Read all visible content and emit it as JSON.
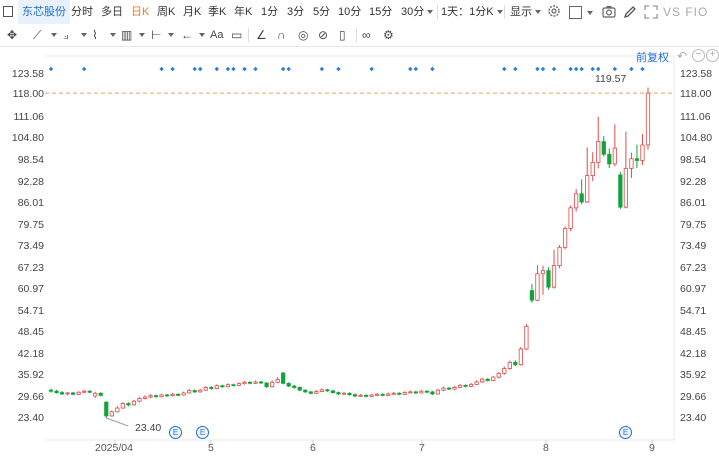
{
  "toolbar": {
    "stock_name": "东芯股份",
    "periods": [
      "分时",
      "多日",
      "日K",
      "周K",
      "月K",
      "季K",
      "年K",
      "1分",
      "3分",
      "5分",
      "10分",
      "15分"
    ],
    "active_period": "日K",
    "period_30": "30分",
    "ratio": "1天：1分K",
    "display": "显示",
    "right_text": "VS FIO"
  },
  "adjust_label": "前复权",
  "chart_data": {
    "type": "candlestick",
    "y_axis_labels": [
      "123.58",
      "118.00",
      "111.06",
      "104.80",
      "98.54",
      "92.28",
      "86.01",
      "79.75",
      "73.49",
      "67.23",
      "60.97",
      "54.71",
      "48.45",
      "42.18",
      "35.92",
      "29.66",
      "23.40"
    ],
    "ylim": [
      23.4,
      123.58
    ],
    "x_tick_labels": [
      "2025/04",
      "5",
      "6",
      "7",
      "8",
      "9"
    ],
    "reference_line": "118.00",
    "annotations": {
      "max": "119.57",
      "min": "23.40"
    },
    "candles": [
      [
        31.5,
        31.2,
        32.0,
        30.8
      ],
      [
        31.2,
        30.8,
        31.6,
        30.5
      ],
      [
        30.8,
        30.4,
        31.2,
        30.1
      ],
      [
        30.4,
        30.7,
        31.0,
        30.0
      ],
      [
        30.7,
        30.3,
        31.0,
        30.0
      ],
      [
        30.3,
        30.9,
        31.2,
        30.1
      ],
      [
        30.9,
        31.2,
        31.6,
        30.6
      ],
      [
        31.2,
        30.9,
        31.5,
        30.6
      ],
      [
        29.8,
        30.6,
        31.0,
        29.3
      ],
      [
        30.6,
        30.0,
        30.9,
        29.7
      ],
      [
        28.0,
        24.0,
        28.3,
        23.4
      ],
      [
        24.0,
        25.2,
        25.6,
        23.8
      ],
      [
        25.2,
        26.3,
        26.8,
        25.0
      ],
      [
        26.3,
        27.6,
        28.0,
        26.1
      ],
      [
        27.6,
        27.2,
        28.0,
        26.8
      ],
      [
        27.2,
        28.3,
        28.7,
        27.0
      ],
      [
        28.3,
        29.1,
        29.5,
        28.0
      ],
      [
        29.1,
        29.5,
        30.0,
        28.8
      ],
      [
        29.5,
        29.9,
        30.3,
        29.2
      ],
      [
        29.9,
        29.6,
        30.2,
        29.3
      ],
      [
        29.6,
        30.1,
        30.5,
        29.4
      ],
      [
        30.1,
        29.9,
        30.4,
        29.6
      ],
      [
        29.9,
        30.3,
        30.7,
        29.7
      ],
      [
        30.3,
        30.1,
        30.6,
        29.8
      ],
      [
        30.1,
        30.7,
        31.1,
        29.9
      ],
      [
        30.7,
        31.4,
        31.8,
        30.5
      ],
      [
        31.4,
        31.0,
        31.7,
        30.7
      ],
      [
        31.0,
        31.5,
        31.9,
        30.8
      ],
      [
        31.5,
        32.3,
        32.7,
        31.3
      ],
      [
        32.3,
        32.0,
        32.7,
        31.6
      ],
      [
        32.0,
        32.8,
        33.2,
        31.8
      ],
      [
        32.8,
        32.5,
        33.1,
        32.2
      ],
      [
        32.5,
        33.1,
        33.5,
        32.3
      ],
      [
        33.1,
        32.9,
        33.4,
        32.6
      ],
      [
        32.9,
        33.4,
        33.8,
        32.7
      ],
      [
        33.4,
        33.8,
        34.2,
        33.1
      ],
      [
        33.8,
        33.5,
        34.1,
        33.2
      ],
      [
        33.5,
        33.9,
        34.3,
        33.3
      ],
      [
        33.9,
        33.6,
        34.2,
        33.3
      ],
      [
        33.6,
        32.5,
        33.8,
        32.2
      ],
      [
        32.5,
        33.8,
        34.3,
        32.3
      ],
      [
        33.8,
        34.6,
        35.3,
        33.5
      ],
      [
        36.5,
        33.5,
        36.8,
        33.2
      ],
      [
        33.5,
        32.7,
        33.8,
        32.4
      ],
      [
        32.7,
        32.3,
        33.0,
        31.9
      ],
      [
        32.3,
        31.5,
        32.6,
        31.2
      ],
      [
        31.5,
        31.0,
        31.8,
        30.7
      ],
      [
        31.0,
        30.6,
        31.3,
        30.3
      ],
      [
        30.6,
        31.1,
        31.5,
        30.4
      ],
      [
        31.1,
        31.6,
        32.0,
        30.9
      ],
      [
        31.6,
        31.3,
        31.9,
        31.0
      ],
      [
        31.3,
        30.8,
        31.6,
        30.5
      ],
      [
        30.8,
        30.4,
        31.1,
        30.1
      ],
      [
        30.4,
        30.6,
        31.0,
        30.2
      ],
      [
        30.6,
        30.2,
        30.9,
        29.9
      ],
      [
        30.2,
        29.8,
        30.5,
        29.5
      ],
      [
        29.8,
        30.0,
        30.4,
        29.6
      ],
      [
        30.0,
        29.7,
        30.3,
        29.4
      ],
      [
        29.7,
        30.1,
        30.4,
        29.5
      ],
      [
        30.1,
        30.3,
        30.7,
        29.9
      ],
      [
        30.3,
        30.0,
        30.6,
        29.7
      ],
      [
        30.0,
        30.4,
        30.8,
        29.8
      ],
      [
        30.4,
        30.6,
        31.0,
        30.2
      ],
      [
        30.6,
        30.3,
        30.9,
        30.0
      ],
      [
        30.3,
        30.8,
        31.2,
        30.1
      ],
      [
        30.8,
        31.0,
        31.4,
        30.6
      ],
      [
        31.0,
        30.7,
        31.3,
        30.4
      ],
      [
        30.7,
        31.2,
        31.6,
        30.5
      ],
      [
        31.2,
        31.0,
        31.5,
        30.7
      ],
      [
        31.0,
        30.4,
        31.3,
        30.1
      ],
      [
        30.4,
        31.5,
        31.9,
        30.2
      ],
      [
        31.5,
        32.1,
        32.5,
        31.2
      ],
      [
        32.1,
        31.8,
        32.4,
        31.5
      ],
      [
        31.8,
        32.3,
        32.7,
        31.6
      ],
      [
        32.3,
        32.9,
        33.3,
        32.1
      ],
      [
        32.9,
        32.6,
        33.2,
        32.3
      ],
      [
        32.6,
        33.2,
        33.6,
        32.4
      ],
      [
        33.2,
        33.9,
        34.4,
        33.0
      ],
      [
        33.9,
        34.7,
        35.1,
        33.6
      ],
      [
        34.7,
        34.3,
        35.0,
        34.0
      ],
      [
        34.3,
        35.3,
        35.7,
        34.1
      ],
      [
        35.3,
        36.4,
        36.8,
        35.0
      ],
      [
        36.4,
        37.8,
        38.4,
        36.0
      ],
      [
        37.8,
        39.6,
        40.1,
        37.4
      ],
      [
        39.6,
        38.9,
        40.2,
        38.5
      ],
      [
        38.9,
        43.5,
        44.1,
        38.6
      ],
      [
        43.5,
        50.1,
        50.8,
        43.2
      ],
      [
        60.5,
        57.7,
        62.5,
        57.0
      ],
      [
        57.7,
        65.4,
        67.9,
        57.4
      ],
      [
        65.4,
        66.3,
        67.8,
        59.3
      ],
      [
        66.3,
        61.5,
        67.3,
        60.7
      ],
      [
        61.5,
        67.8,
        72.4,
        61.1
      ],
      [
        67.8,
        73.1,
        73.8,
        67.0
      ],
      [
        73.1,
        78.6,
        79.2,
        72.5
      ],
      [
        78.6,
        84.6,
        85.3,
        77.8
      ],
      [
        84.6,
        88.7,
        90.1,
        83.5
      ],
      [
        88.7,
        86.3,
        92.9,
        85.6
      ],
      [
        86.3,
        94.0,
        102.2,
        86.0
      ],
      [
        94.0,
        97.8,
        100.8,
        92.4
      ],
      [
        97.8,
        103.9,
        111.1,
        96.1
      ],
      [
        103.9,
        100.2,
        105.5,
        99.5
      ],
      [
        100.2,
        97.4,
        101.9,
        96.2
      ],
      [
        97.4,
        102.0,
        108.9,
        96.7
      ],
      [
        94.2,
        84.8,
        95.1,
        84.3
      ],
      [
        84.8,
        96.1,
        106.8,
        84.4
      ],
      [
        96.1,
        98.9,
        100.7,
        93.3
      ],
      [
        98.9,
        98.4,
        103.0,
        96.2
      ],
      [
        98.4,
        102.9,
        106.1,
        97.1
      ],
      [
        102.9,
        118.0,
        119.6,
        101.6
      ]
    ],
    "event_markers_top": [
      0,
      4,
      14,
      15,
      18,
      19,
      21,
      22,
      23,
      24,
      26,
      29,
      30,
      34,
      36,
      40,
      45,
      46,
      48,
      57,
      58,
      61,
      62,
      63,
      65,
      66,
      67,
      68,
      69,
      71,
      73,
      74
    ],
    "event_markers_bottom": [
      "E",
      "E",
      "E"
    ],
    "colors": {
      "up": "#e04a4a",
      "down": "#12a33a",
      "marker": "#2a7fd4",
      "ref_line": "#f0a060"
    }
  }
}
